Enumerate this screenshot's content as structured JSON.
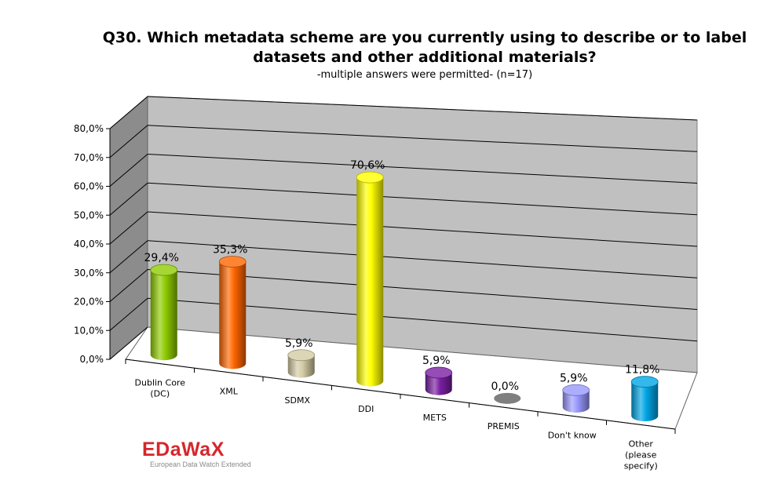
{
  "chart_data": {
    "type": "bar",
    "style": "3d-cylinder",
    "title": "Q30. Which metadata scheme are you currently using to describe or to label datasets and other additional materials?",
    "title_lines": [
      "Q30. Which metadata scheme are you currently using to describe or to label",
      "datasets and other additional materials?"
    ],
    "subtitle": "-multiple answers were permitted-  (n=17)",
    "categories": [
      [
        "Dublin Core",
        "(DC)"
      ],
      [
        "XML"
      ],
      [
        "SDMX"
      ],
      [
        "DDI"
      ],
      [
        "METS"
      ],
      [
        "PREMIS"
      ],
      [
        "Don't know"
      ],
      [
        "Other",
        "(please",
        "specify)"
      ]
    ],
    "values": [
      29.4,
      35.3,
      5.9,
      70.6,
      5.9,
      0.0,
      5.9,
      11.8
    ],
    "data_labels": [
      "29,4%",
      "35,3%",
      "5,9%",
      "70,6%",
      "5,9%",
      "0,0%",
      "5,9%",
      "11,8%"
    ],
    "bar_colors": [
      "#8fcc00",
      "#ff6600",
      "#d4cca4",
      "#ffff00",
      "#7a1fa2",
      "#7f7f7f",
      "#9999ff",
      "#00a6e6"
    ],
    "ylim": [
      0,
      80
    ],
    "ytick_values": [
      0,
      10,
      20,
      30,
      40,
      50,
      60,
      70,
      80
    ],
    "ytick_labels": [
      "0,0%",
      "10,0%",
      "20,0%",
      "30,0%",
      "40,0%",
      "50,0%",
      "60,0%",
      "70,0%",
      "80,0%"
    ],
    "xlabel": "",
    "ylabel": "",
    "grid": true,
    "legend": "none",
    "wall_color": "#c0c0c0"
  },
  "logo": {
    "name": "EDaWaX",
    "tagline": "European Data Watch Extended"
  }
}
